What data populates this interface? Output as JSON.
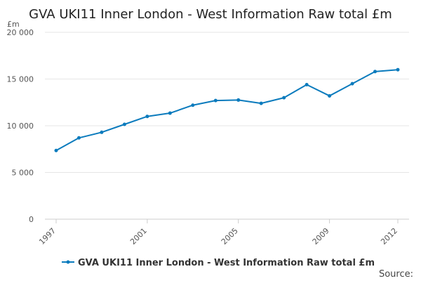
{
  "chart_data": {
    "type": "line",
    "title": "GVA UKI11 Inner London - West Information Raw total £m",
    "unit_label": "£m",
    "xlabel": "",
    "ylabel": "",
    "x": [
      1997,
      1998,
      1999,
      2000,
      2001,
      2002,
      2003,
      2004,
      2005,
      2006,
      2007,
      2008,
      2009,
      2010,
      2011,
      2012
    ],
    "x_tick_labels": [
      "1997",
      "2001",
      "2005",
      "2009",
      "2012"
    ],
    "y_tick_labels": [
      "0",
      "5 000",
      "10 000",
      "15 000",
      "20 000"
    ],
    "y_ticks": [
      0,
      5000,
      10000,
      15000,
      20000
    ],
    "ylim": [
      0,
      20000
    ],
    "xlim": [
      1997,
      2012
    ],
    "grid": true,
    "legend_position": "bottom",
    "series": [
      {
        "name": "GVA UKI11 Inner London - West Information Raw total £m",
        "color": "#0b7bbd",
        "values": [
          7350,
          8700,
          9300,
          10150,
          11000,
          11350,
          12200,
          12700,
          12750,
          12400,
          13000,
          14400,
          13200,
          14500,
          15800,
          16000
        ]
      }
    ]
  },
  "footer": {
    "source_label": "Source:"
  }
}
